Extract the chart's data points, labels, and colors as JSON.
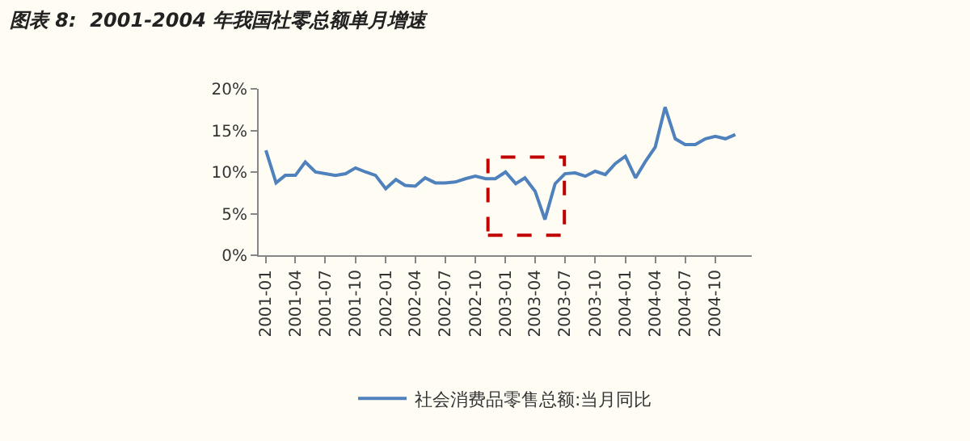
{
  "chart_data": {
    "type": "line",
    "title": "图表 8:  2001-2004 年我国社零总额单月增速",
    "x": [
      "2001-01",
      "2001-02",
      "2001-03",
      "2001-04",
      "2001-05",
      "2001-06",
      "2001-07",
      "2001-08",
      "2001-09",
      "2001-10",
      "2001-11",
      "2001-12",
      "2002-01",
      "2002-02",
      "2002-03",
      "2002-04",
      "2002-05",
      "2002-06",
      "2002-07",
      "2002-08",
      "2002-09",
      "2002-10",
      "2002-11",
      "2002-12",
      "2003-01",
      "2003-02",
      "2003-03",
      "2003-04",
      "2003-05",
      "2003-06",
      "2003-07",
      "2003-08",
      "2003-09",
      "2003-10",
      "2003-11",
      "2003-12",
      "2004-01",
      "2004-02",
      "2004-03",
      "2004-04",
      "2004-05",
      "2004-06",
      "2004-07",
      "2004-08",
      "2004-09",
      "2004-10",
      "2004-11",
      "2004-12"
    ],
    "series": [
      {
        "name": "社会消费品零售总额:当月同比",
        "color": "#4f81bd",
        "values": [
          12.6,
          8.7,
          9.6,
          9.6,
          11.2,
          10.0,
          9.8,
          9.6,
          9.8,
          10.5,
          10.0,
          9.6,
          8.0,
          9.1,
          8.4,
          8.3,
          9.3,
          8.7,
          8.7,
          8.8,
          9.2,
          9.5,
          9.2,
          9.2,
          10.0,
          8.6,
          9.3,
          7.7,
          4.3,
          8.6,
          9.8,
          9.9,
          9.5,
          10.1,
          9.7,
          11.0,
          11.9,
          9.3,
          11.2,
          13.0,
          17.8,
          14.0,
          13.3,
          13.3,
          14.0,
          14.3,
          14.0,
          14.5
        ]
      }
    ],
    "xlim": [
      "2000-12-10",
      "2005-01-20"
    ],
    "xticks": [
      "2001-01",
      "2001-04",
      "2001-07",
      "2001-10",
      "2002-01",
      "2002-04",
      "2002-07",
      "2002-10",
      "2003-01",
      "2003-04",
      "2003-07",
      "2003-10",
      "2004-01",
      "2004-04",
      "2004-07",
      "2004-10"
    ],
    "ylim": [
      0,
      20
    ],
    "yticks": [
      {
        "value": 0,
        "label": "0%"
      },
      {
        "value": 5,
        "label": "5%"
      },
      {
        "value": 10,
        "label": "10%"
      },
      {
        "value": 15,
        "label": "15%"
      },
      {
        "value": 20,
        "label": "20%"
      }
    ],
    "grid": false,
    "legend": "bottom",
    "marker": "none",
    "line_style": "solid"
  }
}
